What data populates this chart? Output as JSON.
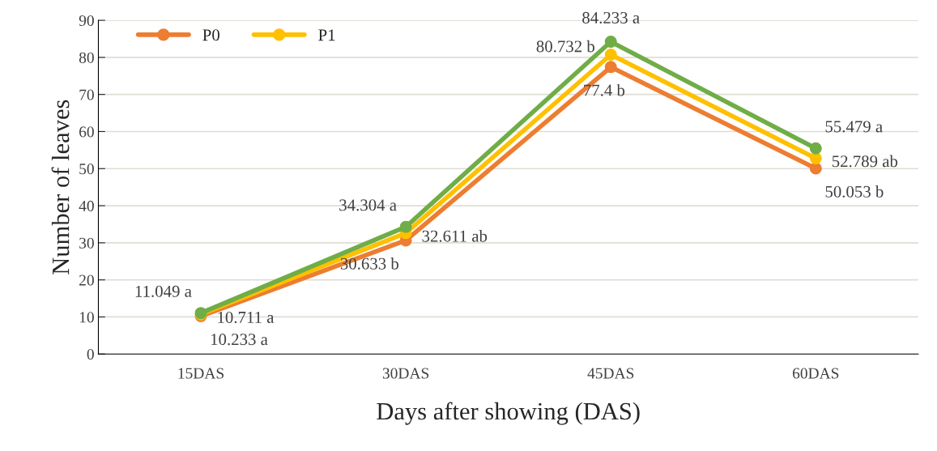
{
  "chart_data": {
    "type": "line",
    "xlabel": "Days after showing (DAS)",
    "ylabel": "Number of leaves",
    "categories": [
      "15DAS",
      "30DAS",
      "45DAS",
      "60DAS"
    ],
    "series": [
      {
        "name": "P0",
        "color": "#ed7d31",
        "values": [
          10.233,
          30.633,
          77.4,
          50.053
        ],
        "value_labels": [
          "10.233 a",
          "30.633 b",
          "77.4 b",
          "50.053 b"
        ]
      },
      {
        "name": "P1",
        "color": "#ffc000",
        "values": [
          10.711,
          32.611,
          80.732,
          52.789
        ],
        "value_labels": [
          "10.711 a",
          "32.611 ab",
          "80.732 b",
          "52.789 ab"
        ]
      },
      {
        "color": "#70ad47",
        "values": [
          11.049,
          34.304,
          84.233,
          55.479
        ],
        "value_labels": [
          "11.049 a",
          "34.304 a",
          "84.233 a",
          "55.479 a"
        ]
      }
    ],
    "ylim": [
      0,
      90
    ],
    "yticks": [
      0,
      10,
      20,
      30,
      40,
      50,
      60,
      70,
      80,
      90
    ],
    "grid": "y",
    "legend": "top left",
    "marker": "circle",
    "line_style": "solid"
  }
}
